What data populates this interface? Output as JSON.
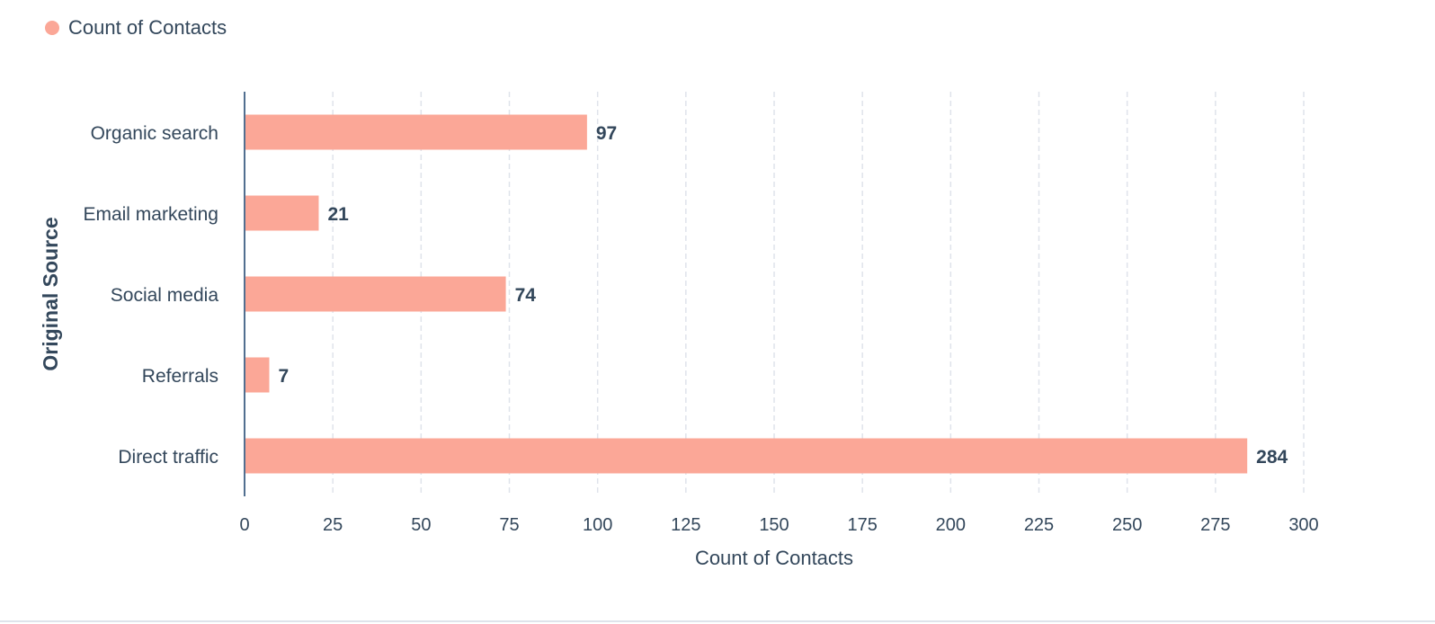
{
  "legend": {
    "label": "Count of Contacts",
    "color": "#fba797"
  },
  "chart_data": {
    "type": "bar",
    "orientation": "horizontal",
    "categories": [
      "Organic search",
      "Email marketing",
      "Social media",
      "Referrals",
      "Direct traffic"
    ],
    "series": [
      {
        "name": "Count of Contacts",
        "values": [
          97,
          21,
          74,
          7,
          284
        ],
        "color": "#fba797"
      }
    ],
    "xlabel": "Count of Contacts",
    "ylabel": "Original Source",
    "xlim": [
      0,
      300
    ],
    "xticks": [
      0,
      25,
      50,
      75,
      100,
      125,
      150,
      175,
      200,
      225,
      250,
      275,
      300
    ],
    "grid": true,
    "legend_position": "top-left"
  }
}
